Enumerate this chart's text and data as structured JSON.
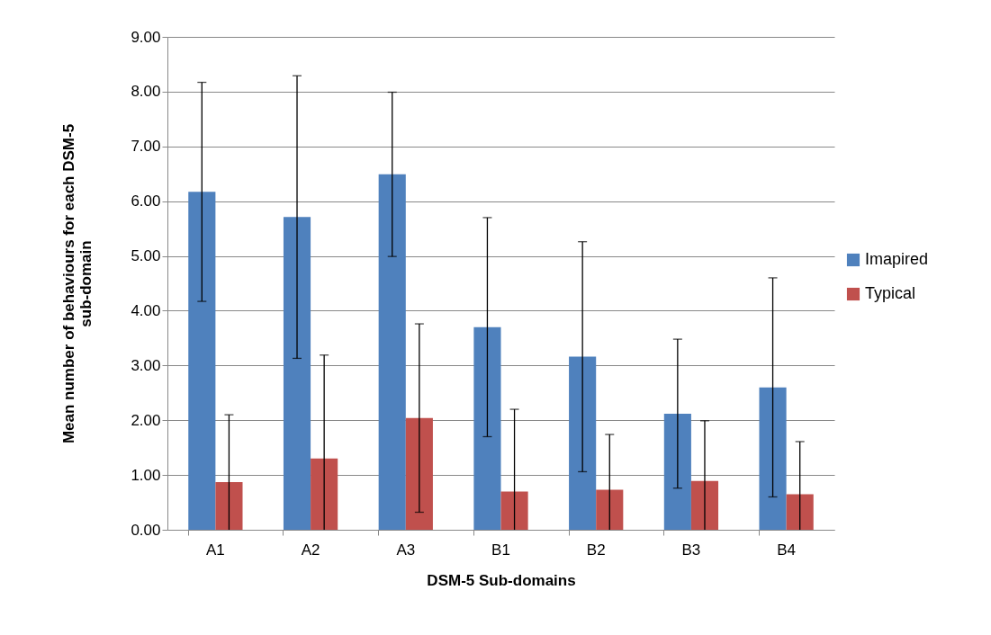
{
  "chart_data": {
    "type": "bar",
    "xlabel": "DSM-5 Sub-domains",
    "ylabel": "Mean number of behaviours for each DSM-5 sub-domain",
    "categories": [
      "A1",
      "A2",
      "A3",
      "B1",
      "B2",
      "B3",
      "B4"
    ],
    "series": [
      {
        "name": "Imapired",
        "color": "#4f81bd",
        "values": [
          6.17,
          5.71,
          6.49,
          3.7,
          3.16,
          2.12,
          2.6
        ],
        "errors": [
          2.0,
          2.58,
          1.5,
          2.0,
          2.1,
          1.36,
          2.0
        ]
      },
      {
        "name": "Typical",
        "color": "#c0504d",
        "values": [
          0.87,
          1.3,
          2.04,
          0.7,
          0.73,
          0.89,
          0.65
        ],
        "errors": [
          [
            0,
            2.1
          ],
          [
            0,
            3.19
          ],
          1.72,
          [
            0,
            2.2
          ],
          [
            0,
            1.74
          ],
          [
            0,
            1.99
          ],
          [
            0,
            1.61
          ]
        ]
      }
    ],
    "ylim": [
      0,
      9
    ],
    "yticks": [
      {
        "value": 0,
        "label": "0.00"
      },
      {
        "value": 1,
        "label": "1.00"
      },
      {
        "value": 2,
        "label": "2.00"
      },
      {
        "value": 3,
        "label": "3.00"
      },
      {
        "value": 4,
        "label": "4.00"
      },
      {
        "value": 5,
        "label": "5.00"
      },
      {
        "value": 6,
        "label": "6.00"
      },
      {
        "value": 7,
        "label": "7.00"
      },
      {
        "value": 8,
        "label": "8.00"
      },
      {
        "value": 9,
        "label": "9.00"
      }
    ],
    "grid": "y",
    "legend": "right"
  }
}
